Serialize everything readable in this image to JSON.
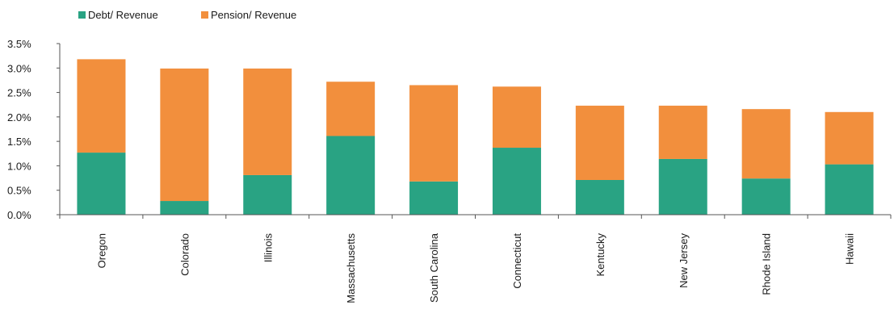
{
  "chart_data": {
    "type": "bar",
    "stacked": true,
    "title": "",
    "xlabel": "",
    "ylabel": "",
    "categories": [
      "Oregon",
      "Colorado",
      "Illinois",
      "Massachusetts",
      "South Carolina",
      "Connecticut",
      "Kentucky",
      "New Jersey",
      "Rhode Island",
      "Hawaii"
    ],
    "series": [
      {
        "name": "Debt/ Revenue",
        "color": "#29a383",
        "values": [
          1.27,
          0.28,
          0.81,
          1.61,
          0.68,
          1.37,
          0.71,
          1.14,
          0.74,
          1.03
        ]
      },
      {
        "name": "Pension/ Revenue",
        "color": "#f28f3d",
        "values": [
          1.91,
          2.71,
          2.18,
          1.11,
          1.97,
          1.25,
          1.52,
          1.09,
          1.42,
          1.07
        ]
      }
    ],
    "ylim": [
      0,
      3.5
    ],
    "yticks": [
      0,
      0.5,
      1.0,
      1.5,
      2.0,
      2.5,
      3.0,
      3.5
    ],
    "ytick_labels": [
      "0.0%",
      "0.5%",
      "1.0%",
      "1.5%",
      "2.0%",
      "2.5%",
      "3.0%",
      "3.5%"
    ],
    "grid": false,
    "legend_position": "top-left"
  }
}
